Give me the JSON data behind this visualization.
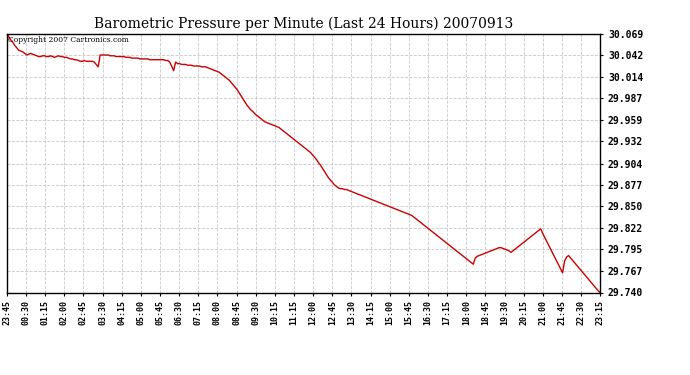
{
  "title": "Barometric Pressure per Minute (Last 24 Hours) 20070913",
  "copyright_text": "Copyright 2007 Cartronics.com",
  "line_color": "#cc0000",
  "background_color": "#ffffff",
  "plot_bg_color": "#ffffff",
  "grid_color": "#bbbbbb",
  "grid_linestyle": "--",
  "ylim": [
    29.74,
    30.069
  ],
  "yticks": [
    29.74,
    29.767,
    29.795,
    29.822,
    29.85,
    29.877,
    29.904,
    29.932,
    29.959,
    29.987,
    30.014,
    30.042,
    30.069
  ],
  "xtick_labels": [
    "23:45",
    "00:30",
    "01:15",
    "02:00",
    "02:45",
    "03:30",
    "04:15",
    "05:00",
    "05:45",
    "06:30",
    "07:15",
    "08:00",
    "08:45",
    "09:30",
    "10:15",
    "11:15",
    "12:00",
    "12:45",
    "13:30",
    "14:15",
    "15:00",
    "15:45",
    "16:30",
    "17:15",
    "18:00",
    "18:45",
    "19:30",
    "20:15",
    "21:00",
    "21:45",
    "22:30",
    "23:15"
  ],
  "pressure_data": [
    30.069,
    30.065,
    30.061,
    30.058,
    30.054,
    30.051,
    30.048,
    30.047,
    30.046,
    30.044,
    30.042,
    30.043,
    30.044,
    30.043,
    30.042,
    30.041,
    30.04,
    30.04,
    30.041,
    30.041,
    30.04,
    30.04,
    30.041,
    30.04,
    30.039,
    30.04,
    30.041,
    30.04,
    30.04,
    30.039,
    30.039,
    30.038,
    30.037,
    30.037,
    30.036,
    30.036,
    30.035,
    30.034,
    30.034,
    30.035,
    30.034,
    30.034,
    30.034,
    30.034,
    30.033,
    30.03,
    30.027,
    30.042,
    30.042,
    30.042,
    30.042,
    30.042,
    30.041,
    30.041,
    30.041,
    30.04,
    30.04,
    30.04,
    30.04,
    30.04,
    30.039,
    30.039,
    30.039,
    30.038,
    30.038,
    30.038,
    30.038,
    30.037,
    30.037,
    30.037,
    30.037,
    30.037,
    30.036,
    30.036,
    30.036,
    30.036,
    30.036,
    30.036,
    30.036,
    30.036,
    30.035,
    30.035,
    30.033,
    30.028,
    30.022,
    30.033,
    30.031,
    30.031,
    30.03,
    30.03,
    30.03,
    30.029,
    30.029,
    30.029,
    30.028,
    30.028,
    30.028,
    30.028,
    30.027,
    30.027,
    30.027,
    30.026,
    30.025,
    30.024,
    30.023,
    30.022,
    30.021,
    30.02,
    30.018,
    30.016,
    30.014,
    30.012,
    30.01,
    30.007,
    30.004,
    30.001,
    29.998,
    29.994,
    29.99,
    29.986,
    29.982,
    29.978,
    29.975,
    29.972,
    29.97,
    29.967,
    29.965,
    29.963,
    29.961,
    29.959,
    29.957,
    29.956,
    29.955,
    29.954,
    29.953,
    29.952,
    29.951,
    29.95,
    29.948,
    29.946,
    29.944,
    29.942,
    29.94,
    29.938,
    29.936,
    29.934,
    29.932,
    29.93,
    29.928,
    29.926,
    29.924,
    29.922,
    29.92,
    29.918,
    29.915,
    29.912,
    29.909,
    29.905,
    29.902,
    29.898,
    29.894,
    29.89,
    29.886,
    29.883,
    29.88,
    29.877,
    29.875,
    29.873,
    29.872,
    29.872,
    29.871,
    29.871,
    29.87,
    29.869,
    29.868,
    29.867,
    29.866,
    29.865,
    29.864,
    29.863,
    29.862,
    29.861,
    29.86,
    29.859,
    29.858,
    29.857,
    29.856,
    29.855,
    29.854,
    29.853,
    29.852,
    29.851,
    29.85,
    29.849,
    29.848,
    29.847,
    29.846,
    29.845,
    29.844,
    29.843,
    29.842,
    29.841,
    29.84,
    29.839,
    29.838,
    29.836,
    29.834,
    29.832,
    29.83,
    29.828,
    29.826,
    29.824,
    29.822,
    29.82,
    29.818,
    29.816,
    29.814,
    29.812,
    29.81,
    29.808,
    29.806,
    29.804,
    29.802,
    29.8,
    29.798,
    29.796,
    29.794,
    29.792,
    29.79,
    29.788,
    29.786,
    29.784,
    29.782,
    29.78,
    29.778,
    29.776,
    29.784,
    29.786,
    29.787,
    29.788,
    29.789,
    29.79,
    29.791,
    29.792,
    29.793,
    29.794,
    29.795,
    29.796,
    29.797,
    29.797,
    29.796,
    29.795,
    29.794,
    29.793,
    29.791,
    29.793,
    29.795,
    29.797,
    29.799,
    29.801,
    29.803,
    29.805,
    29.807,
    29.809,
    29.811,
    29.813,
    29.815,
    29.817,
    29.819,
    29.821,
    29.815,
    29.81,
    29.805,
    29.8,
    29.795,
    29.79,
    29.785,
    29.78,
    29.775,
    29.77,
    29.765,
    29.78,
    29.785,
    29.787,
    29.784,
    29.781,
    29.778,
    29.775,
    29.772,
    29.769,
    29.766,
    29.763,
    29.76,
    29.757,
    29.754,
    29.751,
    29.748,
    29.745,
    29.742,
    29.74
  ]
}
